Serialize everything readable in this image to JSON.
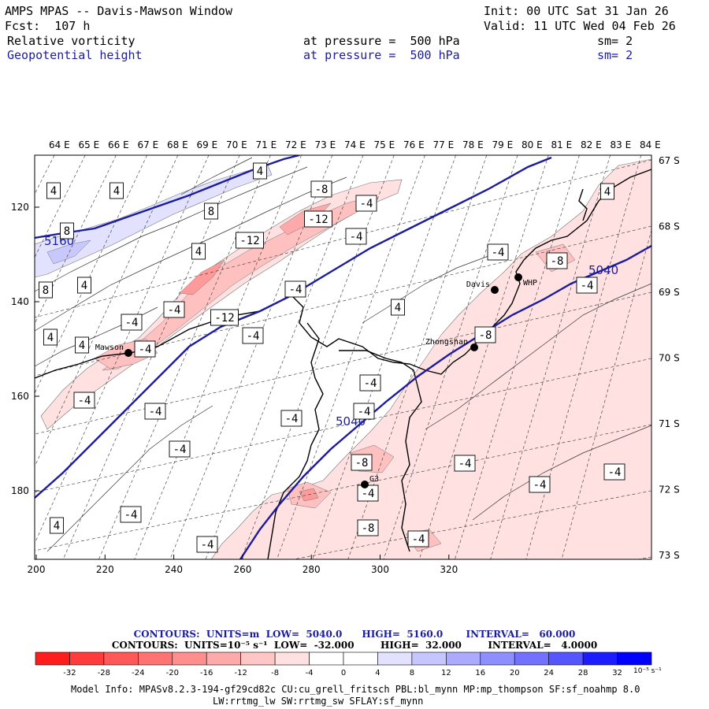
{
  "header": {
    "app_title": "AMPS MPAS -- Davis-Mawson Window",
    "init_time": "Init: 00 UTC Sat 31 Jan 26",
    "forecast_hour": "Fcst:  107 h",
    "valid_time": "Valid: 11 UTC Wed 04 Feb 26",
    "field1_name": "Relative vorticity",
    "field1_level": "at pressure =  500 hPa",
    "field1_smooth": "sm= 2",
    "field2_name": "Geopotential height",
    "field2_level": "at pressure =  500 hPa",
    "field2_smooth": "sm= 2"
  },
  "map": {
    "top_longitude_labels": [
      "64 E",
      "65 E",
      "66 E",
      "67 E",
      "68 E",
      "69 E",
      "70 E",
      "71 E",
      "72 E",
      "73 E",
      "74 E",
      "75 E",
      "76 E",
      "77 E",
      "78 E",
      "79 E",
      "80 E",
      "81 E",
      "82 E",
      "83 E",
      "84 E"
    ],
    "right_latitude_labels": [
      "67 S",
      "68 S",
      "69 S",
      "70 S",
      "71 S",
      "72 S",
      "73 S"
    ],
    "left_axis_labels": [
      "120",
      "140",
      "160",
      "180"
    ],
    "bottom_axis_labels": [
      "200",
      "220",
      "240",
      "260",
      "280",
      "300",
      "320"
    ],
    "stations": [
      {
        "name": "Davis"
      },
      {
        "name": "WHP"
      },
      {
        "name": "Mawson"
      },
      {
        "name": "Zhongshan"
      },
      {
        "name": "G3"
      }
    ],
    "height_contour_labels": [
      "5160",
      "5040",
      "5040"
    ],
    "vorticity_labels": [
      "4",
      "4",
      "-8",
      "-4",
      "4",
      "-12",
      "-4",
      "8",
      "8",
      "-12",
      "-4",
      "4",
      "-8",
      "-4",
      "8",
      "4",
      "-4",
      "4",
      "4",
      "-4",
      "-12",
      "-4",
      "-4",
      "4",
      "-4",
      "-8",
      "-4",
      "-4",
      "-4",
      "-4",
      "-4",
      "-4",
      "-4",
      "-8",
      "-4",
      "-4",
      "-4",
      "-8",
      "-4",
      "4",
      "-4",
      "-4",
      "4"
    ],
    "colors": {
      "height_contour": "#1c1c9c",
      "vorticity_neg_light": "#ffe1e1",
      "vorticity_neg_mid": "#ffc0c0",
      "vorticity_neg_strong": "#ff9a9a",
      "vorticity_pos_light": "#e2e2ff",
      "vorticity_pos_mid": "#c8c8ff"
    }
  },
  "legend": {
    "height_contours": "CONTOURS:  UNITS=m  LOW=  5040.0      HIGH=  5160.0       INTERVAL=   60.000",
    "vorticity_contours": "CONTOURS:  UNITS=10⁻⁵ s⁻¹  LOW=  -32.000        HIGH=  32.000        INTERVAL=   4.0000",
    "colorbar_ticks": [
      "-32",
      "-28",
      "-24",
      "-20",
      "-16",
      "-12",
      "-8",
      "-4",
      "0",
      "4",
      "8",
      "12",
      "16",
      "20",
      "24",
      "28",
      "32"
    ],
    "colorbar_unit": "10⁻⁵ s⁻¹",
    "colorbar_colors": [
      "#ff1c1c",
      "#ff3b3b",
      "#ff5858",
      "#ff7373",
      "#ff8f8f",
      "#ffaaaa",
      "#ffc6c6",
      "#ffe1e1",
      "#ffffff",
      "#ffffff",
      "#e2e2ff",
      "#c6c6ff",
      "#aaaaff",
      "#8e8eff",
      "#7272ff",
      "#5656ff",
      "#1c1cff",
      "#0000ff"
    ]
  },
  "model_info": {
    "line1": "Model Info: MPASv8.2.3-194-gf29cd82c CU:cu_grell_fritsch PBL:bl_mynn MP:mp_thompson SF:sf_noahmp 8.0",
    "line2": "LW:rrtmg_lw SW:rrtmg_sw SFLAY:sf_mynn"
  }
}
